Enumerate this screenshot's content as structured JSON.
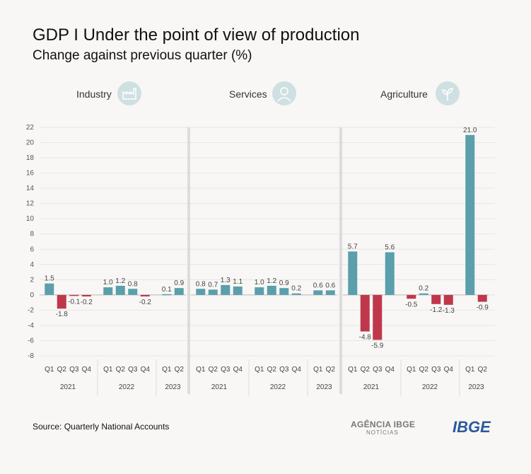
{
  "title": "GDP I Under the point of view of production",
  "subtitle": "Change against previous quarter (%)",
  "source": "Source: Quarterly National Accounts",
  "logos": {
    "agencia": "AGÊNCIA IBGE",
    "agencia_sub": "NOTÍCIAS",
    "ibge": "IBGE"
  },
  "icons": [
    "factory-icon",
    "person-service-icon",
    "plant-icon"
  ],
  "colors": {
    "positive": "#5a9fab",
    "negative": "#c0374b",
    "divider": "#dcdcdc"
  },
  "chart_data": {
    "type": "bar",
    "ylim": [
      -8,
      22
    ],
    "yticks": [
      -8,
      -6,
      -4,
      -2,
      0,
      2,
      4,
      6,
      8,
      10,
      12,
      14,
      16,
      18,
      20,
      22
    ],
    "grid": true,
    "categories": [
      "Q1",
      "Q2",
      "Q3",
      "Q4",
      "Q1",
      "Q2",
      "Q3",
      "Q4",
      "Q1",
      "Q2"
    ],
    "years": [
      {
        "label": "2021",
        "count": 4
      },
      {
        "label": "2022",
        "count": 4
      },
      {
        "label": "2023",
        "count": 2
      }
    ],
    "panels": [
      {
        "name": "Industry",
        "values": [
          1.5,
          -1.8,
          -0.1,
          -0.2,
          1.0,
          1.2,
          0.8,
          -0.2,
          0.1,
          0.9
        ]
      },
      {
        "name": "Services",
        "values": [
          0.8,
          0.7,
          1.3,
          1.1,
          1.0,
          1.2,
          0.9,
          0.2,
          0.6,
          0.6
        ]
      },
      {
        "name": "Agriculture",
        "values": [
          5.7,
          -4.8,
          -5.9,
          5.6,
          -0.5,
          0.2,
          -1.2,
          -1.3,
          21.0,
          -0.9
        ]
      }
    ]
  }
}
